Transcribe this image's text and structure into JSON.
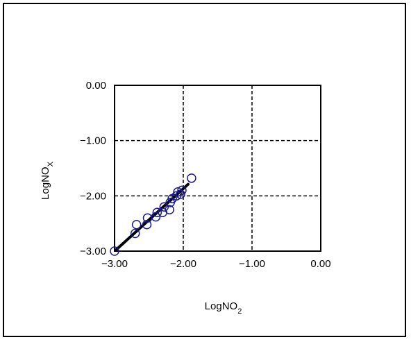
{
  "chart_data": {
    "type": "scatter",
    "title": "",
    "xlabel": {
      "main": "LogNO",
      "sub": "2"
    },
    "ylabel": {
      "main": "LogNO",
      "sub": "X"
    },
    "xlim": [
      -3.0,
      0.0
    ],
    "ylim": [
      -3.0,
      0.0
    ],
    "x_ticks": [
      -3.0,
      -2.0,
      -1.0,
      0.0
    ],
    "y_ticks": [
      -3.0,
      -2.0,
      -1.0,
      0.0
    ],
    "x_tick_labels": [
      "−3.00",
      "−2.00",
      "−1.00",
      "0.00"
    ],
    "y_tick_labels": [
      "−3.00",
      "−2.00",
      "−1.00",
      "0.00"
    ],
    "grid": true,
    "legend": "none",
    "colors": {
      "marker": "#1a1a8c",
      "fit_line": "#000000",
      "grid": "#000000"
    },
    "points": [
      {
        "x": -3.0,
        "y": -3.0
      },
      {
        "x": -2.7,
        "y": -2.68
      },
      {
        "x": -2.68,
        "y": -2.52
      },
      {
        "x": -2.53,
        "y": -2.52
      },
      {
        "x": -2.52,
        "y": -2.4
      },
      {
        "x": -2.4,
        "y": -2.38
      },
      {
        "x": -2.38,
        "y": -2.3
      },
      {
        "x": -2.3,
        "y": -2.3
      },
      {
        "x": -2.28,
        "y": -2.2
      },
      {
        "x": -2.2,
        "y": -2.25
      },
      {
        "x": -2.19,
        "y": -2.12
      },
      {
        "x": -2.16,
        "y": -2.05
      },
      {
        "x": -2.1,
        "y": -2.0
      },
      {
        "x": -2.08,
        "y": -1.93
      },
      {
        "x": -2.04,
        "y": -1.97
      },
      {
        "x": -2.02,
        "y": -1.9
      },
      {
        "x": -1.88,
        "y": -1.68
      }
    ],
    "fit_line": {
      "x": [
        -2.98,
        -1.93
      ],
      "y": [
        -2.98,
        -1.79
      ]
    }
  }
}
